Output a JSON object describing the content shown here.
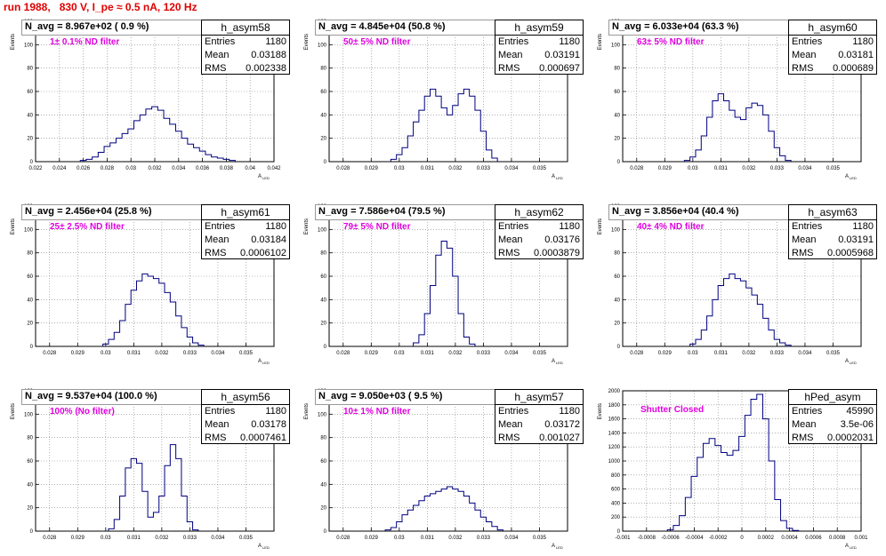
{
  "page_title": "run 1988,   830 V, I_pe ≈ 0.5 nA, 120 Hz",
  "stat_labels": {
    "entries": "Entries",
    "mean": "Mean",
    "rms": "RMS"
  },
  "colors": {
    "histogram": "#000080",
    "title": "#e00000",
    "annotation": "#e000e0",
    "grid": "#808080"
  },
  "axis": {
    "ytitle": "Events",
    "xtitle": "A",
    "xtitle_sub": "LED"
  },
  "chart_data": [
    {
      "type": "bar",
      "name": "h_asym58",
      "entries": "1180",
      "mean": "0.03188",
      "rms": "0.002338",
      "nlabel": "N_avg = 8.967e+02 ( 0.9 %)",
      "filter": "1± 0.1% ND filter",
      "xlim": [
        0.022,
        0.042
      ],
      "ylim": [
        0,
        120
      ],
      "xticks": [
        "0.022",
        "0.024",
        "0.026",
        "0.028",
        "0.03",
        "0.032",
        "0.034",
        "0.036",
        "0.038",
        "0.04",
        "0.042"
      ],
      "yticks": [
        "0",
        "20",
        "40",
        "60",
        "80",
        "100",
        "120"
      ],
      "x": [
        0.026,
        0.0265,
        0.027,
        0.0275,
        0.028,
        0.0285,
        0.029,
        0.0295,
        0.03,
        0.0305,
        0.031,
        0.0315,
        0.032,
        0.0325,
        0.033,
        0.0335,
        0.034,
        0.0345,
        0.035,
        0.0355,
        0.036,
        0.0365,
        0.037,
        0.0375,
        0.038,
        0.0385
      ],
      "values": [
        1,
        2,
        4,
        8,
        13,
        16,
        20,
        24,
        28,
        35,
        40,
        45,
        47,
        44,
        37,
        32,
        26,
        20,
        15,
        12,
        9,
        6,
        4,
        3,
        2,
        1
      ]
    },
    {
      "type": "bar",
      "name": "h_asym59",
      "entries": "1180",
      "mean": "0.03191",
      "rms": "0.000697",
      "nlabel": "N_avg = 4.845e+04 (50.8 %)",
      "filter": "50± 5% ND filter",
      "xlim": [
        0.0275,
        0.036
      ],
      "ylim": [
        0,
        120
      ],
      "xticks": [
        "0.028",
        "0.029",
        "0.03",
        "0.031",
        "0.032",
        "0.033",
        "0.034",
        "0.035"
      ],
      "yticks": [
        "0",
        "20",
        "40",
        "60",
        "80",
        "100",
        "120"
      ],
      "x": [
        0.0298,
        0.03,
        0.0302,
        0.0304,
        0.0306,
        0.0308,
        0.031,
        0.0312,
        0.0314,
        0.0316,
        0.0318,
        0.032,
        0.0322,
        0.0324,
        0.0326,
        0.0328,
        0.033,
        0.0332,
        0.0334
      ],
      "values": [
        2,
        6,
        12,
        22,
        34,
        44,
        56,
        62,
        56,
        46,
        40,
        48,
        58,
        62,
        56,
        44,
        26,
        10,
        3
      ]
    },
    {
      "type": "bar",
      "name": "h_asym60",
      "entries": "1180",
      "mean": "0.03181",
      "rms": "0.000689",
      "nlabel": "N_avg = 6.033e+04 (63.3 %)",
      "filter": "63± 5% ND filter",
      "xlim": [
        0.0275,
        0.036
      ],
      "ylim": [
        0,
        120
      ],
      "xticks": [
        "0.028",
        "0.029",
        "0.03",
        "0.031",
        "0.032",
        "0.033",
        "0.034",
        "0.035"
      ],
      "yticks": [
        "0",
        "20",
        "40",
        "60",
        "80",
        "100",
        "120"
      ],
      "x": [
        0.0298,
        0.03,
        0.0302,
        0.0304,
        0.0306,
        0.0308,
        0.031,
        0.0312,
        0.0314,
        0.0316,
        0.0318,
        0.032,
        0.0322,
        0.0324,
        0.0326,
        0.0328,
        0.033,
        0.0332,
        0.0334
      ],
      "values": [
        1,
        4,
        10,
        22,
        38,
        52,
        58,
        52,
        44,
        38,
        36,
        46,
        50,
        48,
        40,
        26,
        12,
        5,
        1
      ]
    },
    {
      "type": "bar",
      "name": "h_asym61",
      "entries": "1180",
      "mean": "0.03184",
      "rms": "0.0006102",
      "nlabel": "N_avg = 2.456e+04 (25.8 %)",
      "filter": "25± 2.5% ND filter",
      "xlim": [
        0.0275,
        0.036
      ],
      "ylim": [
        0,
        120
      ],
      "xticks": [
        "0.028",
        "0.029",
        "0.03",
        "0.031",
        "0.032",
        "0.033",
        "0.034",
        "0.035"
      ],
      "yticks": [
        "0",
        "20",
        "40",
        "60",
        "80",
        "100",
        "120"
      ],
      "x": [
        0.03,
        0.0302,
        0.0304,
        0.0306,
        0.0308,
        0.031,
        0.0312,
        0.0314,
        0.0316,
        0.0318,
        0.032,
        0.0322,
        0.0324,
        0.0326,
        0.0328,
        0.033,
        0.0332,
        0.0334
      ],
      "values": [
        2,
        6,
        12,
        22,
        36,
        48,
        56,
        62,
        60,
        58,
        54,
        46,
        38,
        26,
        16,
        8,
        3,
        1
      ]
    },
    {
      "type": "bar",
      "name": "h_asym62",
      "entries": "1180",
      "mean": "0.03176",
      "rms": "0.0003879",
      "nlabel": "N_avg = 7.586e+04 (79.5 %)",
      "filter": "79± 5% ND filter",
      "xlim": [
        0.0275,
        0.036
      ],
      "ylim": [
        0,
        120
      ],
      "xticks": [
        "0.028",
        "0.029",
        "0.03",
        "0.031",
        "0.032",
        "0.033",
        "0.034",
        "0.035"
      ],
      "yticks": [
        "0",
        "20",
        "40",
        "60",
        "80",
        "100",
        "120"
      ],
      "x": [
        0.0306,
        0.0308,
        0.031,
        0.0312,
        0.0314,
        0.0316,
        0.0318,
        0.032,
        0.0322,
        0.0324,
        0.0326
      ],
      "values": [
        3,
        10,
        28,
        52,
        78,
        90,
        84,
        60,
        28,
        8,
        2
      ]
    },
    {
      "type": "bar",
      "name": "h_asym63",
      "entries": "1180",
      "mean": "0.03191",
      "rms": "0.0005968",
      "nlabel": "N_avg = 3.856e+04 (40.4 %)",
      "filter": "40± 4% ND filter",
      "xlim": [
        0.0275,
        0.036
      ],
      "ylim": [
        0,
        120
      ],
      "xticks": [
        "0.028",
        "0.029",
        "0.03",
        "0.031",
        "0.032",
        "0.033",
        "0.034",
        "0.035"
      ],
      "yticks": [
        "0",
        "20",
        "40",
        "60",
        "80",
        "100",
        "120"
      ],
      "x": [
        0.03,
        0.0302,
        0.0304,
        0.0306,
        0.0308,
        0.031,
        0.0312,
        0.0314,
        0.0316,
        0.0318,
        0.032,
        0.0322,
        0.0324,
        0.0326,
        0.0328,
        0.033,
        0.0332,
        0.0334
      ],
      "values": [
        2,
        6,
        14,
        26,
        40,
        52,
        58,
        62,
        58,
        56,
        50,
        44,
        36,
        24,
        14,
        6,
        3,
        1
      ]
    },
    {
      "type": "bar",
      "name": "h_asym56",
      "entries": "1180",
      "mean": "0.03178",
      "rms": "0.0007461",
      "nlabel": "N_avg = 9.537e+04 (100.0 %)",
      "filter": "100% (No filter)",
      "xlim": [
        0.0275,
        0.036
      ],
      "ylim": [
        0,
        120
      ],
      "xticks": [
        "0.028",
        "0.029",
        "0.03",
        "0.031",
        "0.032",
        "0.033",
        "0.034",
        "0.035"
      ],
      "yticks": [
        "0",
        "20",
        "40",
        "60",
        "80",
        "100",
        "120"
      ],
      "x": [
        0.0302,
        0.0304,
        0.0306,
        0.0308,
        0.031,
        0.0312,
        0.0314,
        0.0316,
        0.0318,
        0.032,
        0.0322,
        0.0324,
        0.0326,
        0.0328,
        0.033,
        0.0332
      ],
      "values": [
        2,
        10,
        30,
        54,
        62,
        58,
        34,
        12,
        16,
        30,
        56,
        74,
        62,
        30,
        8,
        1
      ]
    },
    {
      "type": "bar",
      "name": "h_asym57",
      "entries": "1180",
      "mean": "0.03172",
      "rms": "0.001027",
      "nlabel": "N_avg = 9.050e+03 ( 9.5 %)",
      "filter": "10± 1% ND filter",
      "xlim": [
        0.0275,
        0.036
      ],
      "ylim": [
        0,
        120
      ],
      "xticks": [
        "0.028",
        "0.029",
        "0.03",
        "0.031",
        "0.032",
        "0.033",
        "0.034",
        "0.035"
      ],
      "yticks": [
        "0",
        "20",
        "40",
        "60",
        "80",
        "100",
        "120"
      ],
      "x": [
        0.0296,
        0.0298,
        0.03,
        0.0302,
        0.0304,
        0.0306,
        0.0308,
        0.031,
        0.0312,
        0.0314,
        0.0316,
        0.0318,
        0.032,
        0.0322,
        0.0324,
        0.0326,
        0.0328,
        0.033,
        0.0332,
        0.0334,
        0.0336
      ],
      "values": [
        1,
        3,
        8,
        14,
        18,
        22,
        26,
        30,
        32,
        34,
        36,
        38,
        36,
        34,
        30,
        24,
        18,
        12,
        8,
        4,
        1
      ]
    },
    {
      "type": "bar",
      "name": "hPed_asym",
      "entries": "45990",
      "mean": "3.5e-06",
      "rms": "0.0002031",
      "nlabel": "",
      "filter": "Shutter Closed",
      "xlim": [
        -0.001,
        0.001
      ],
      "ylim": [
        0,
        2000
      ],
      "xticks": [
        "-0.001",
        "-0.0008",
        "-0.0006",
        "-0.0004",
        "-0.0002",
        "0",
        "0.0002",
        "0.0004",
        "0.0006",
        "0.0008",
        "0.001"
      ],
      "yticks": [
        "0",
        "200",
        "400",
        "600",
        "800",
        "1000",
        "1200",
        "1400",
        "1600",
        "1800",
        "2000"
      ],
      "x": [
        -0.0006,
        -0.00055,
        -0.0005,
        -0.00045,
        -0.0004,
        -0.00035,
        -0.0003,
        -0.00025,
        -0.0002,
        -0.00015,
        -0.0001,
        -5e-05,
        0,
        5e-05,
        0.0001,
        0.00015,
        0.0002,
        0.00025,
        0.0003,
        0.00035,
        0.0004,
        0.00045
      ],
      "values": [
        20,
        80,
        220,
        480,
        780,
        1050,
        1250,
        1320,
        1220,
        1120,
        1080,
        1150,
        1350,
        1650,
        1880,
        1950,
        1600,
        1000,
        450,
        150,
        40,
        10
      ]
    }
  ]
}
